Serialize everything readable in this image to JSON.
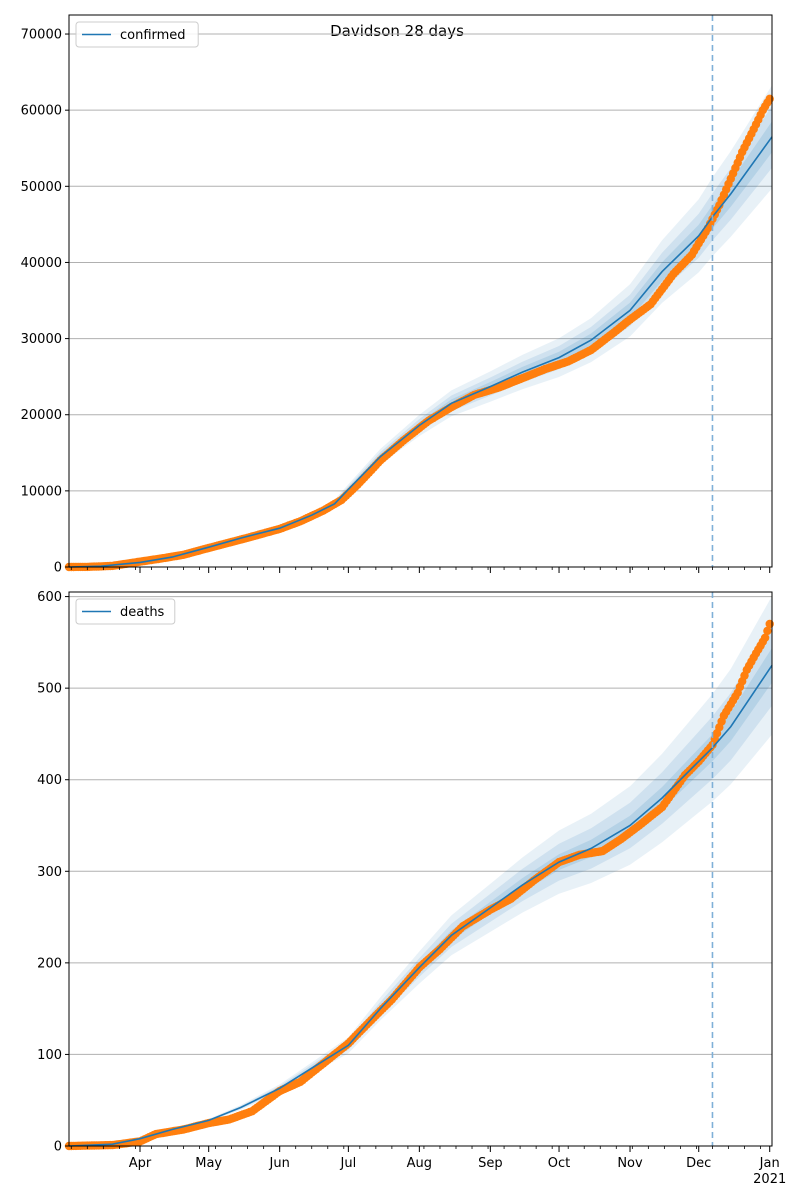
{
  "figure_title": "Davidson 28 days",
  "colors": {
    "model_line": "#1f77b4",
    "observed": "#ff7f0e",
    "band": "#1f77b4",
    "grid": "#b0b0b0",
    "vline": "#7fb0d8"
  },
  "chart_data": [
    {
      "type": "line",
      "legend": "confirmed",
      "legend_position": "top-left",
      "grid": "y",
      "x_range": [
        "2020-03-01",
        "2021-01-02"
      ],
      "vline_date": "2020-12-07",
      "ylim": [
        0,
        72500
      ],
      "yticks": [
        0,
        10000,
        20000,
        30000,
        40000,
        50000,
        60000,
        70000
      ],
      "ytick_labels": [
        "0",
        "10000",
        "20000",
        "30000",
        "40000",
        "50000",
        "60000",
        "70000"
      ],
      "show_x_labels": false,
      "model_series": {
        "name": "confirmed",
        "points": [
          [
            "2020-03-01",
            0
          ],
          [
            "2020-03-15",
            100
          ],
          [
            "2020-04-01",
            600
          ],
          [
            "2020-04-15",
            1300
          ],
          [
            "2020-05-01",
            2600
          ],
          [
            "2020-05-15",
            3800
          ],
          [
            "2020-06-01",
            5100
          ],
          [
            "2020-06-15",
            6800
          ],
          [
            "2020-06-25",
            8300
          ],
          [
            "2020-07-01",
            10200
          ],
          [
            "2020-07-15",
            14500
          ],
          [
            "2020-08-01",
            18600
          ],
          [
            "2020-08-15",
            21500
          ],
          [
            "2020-09-01",
            23700
          ],
          [
            "2020-09-15",
            25600
          ],
          [
            "2020-10-01",
            27500
          ],
          [
            "2020-10-15",
            29800
          ],
          [
            "2020-11-01",
            33700
          ],
          [
            "2020-11-15",
            38800
          ],
          [
            "2020-12-01",
            43500
          ],
          [
            "2020-12-07",
            46000
          ],
          [
            "2020-12-15",
            49000
          ],
          [
            "2021-01-02",
            56500
          ]
        ],
        "bands": [
          {
            "lower_frac": 0.1,
            "upper_frac": 0.1,
            "opacity": 0.1
          },
          {
            "lower_frac": 0.06,
            "upper_frac": 0.06,
            "opacity": 0.12
          },
          {
            "lower_frac": 0.03,
            "upper_frac": 0.03,
            "opacity": 0.14
          }
        ]
      },
      "observed_series": {
        "name": "observed",
        "points": [
          [
            "2020-03-01",
            0
          ],
          [
            "2020-03-10",
            20
          ],
          [
            "2020-03-20",
            150
          ],
          [
            "2020-04-01",
            700
          ],
          [
            "2020-04-10",
            1100
          ],
          [
            "2020-04-20",
            1600
          ],
          [
            "2020-05-01",
            2500
          ],
          [
            "2020-05-10",
            3200
          ],
          [
            "2020-05-20",
            4000
          ],
          [
            "2020-06-01",
            5000
          ],
          [
            "2020-06-10",
            6000
          ],
          [
            "2020-06-20",
            7400
          ],
          [
            "2020-06-28",
            8800
          ],
          [
            "2020-07-05",
            10800
          ],
          [
            "2020-07-15",
            14000
          ],
          [
            "2020-07-25",
            16600
          ],
          [
            "2020-08-05",
            19200
          ],
          [
            "2020-08-15",
            21000
          ],
          [
            "2020-08-25",
            22600
          ],
          [
            "2020-09-05",
            23600
          ],
          [
            "2020-09-15",
            24800
          ],
          [
            "2020-09-25",
            26000
          ],
          [
            "2020-10-05",
            27000
          ],
          [
            "2020-10-15",
            28500
          ],
          [
            "2020-10-25",
            30800
          ],
          [
            "2020-11-01",
            32500
          ],
          [
            "2020-11-10",
            34500
          ],
          [
            "2020-11-20",
            38500
          ],
          [
            "2020-11-28",
            41000
          ],
          [
            "2020-12-05",
            44500
          ],
          [
            "2020-12-10",
            47500
          ],
          [
            "2020-12-15",
            51000
          ],
          [
            "2020-12-20",
            54500
          ],
          [
            "2020-12-25",
            57500
          ],
          [
            "2020-12-29",
            60000
          ],
          [
            "2021-01-01",
            61500
          ]
        ]
      }
    },
    {
      "type": "line",
      "legend": "deaths",
      "legend_position": "top-left",
      "grid": "y",
      "x_range": [
        "2020-03-01",
        "2021-01-02"
      ],
      "vline_date": "2020-12-07",
      "ylim": [
        0,
        605
      ],
      "yticks": [
        0,
        100,
        200,
        300,
        400,
        500,
        600
      ],
      "ytick_labels": [
        "0",
        "100",
        "200",
        "300",
        "400",
        "500",
        "600"
      ],
      "show_x_labels": true,
      "xtick_labels": [
        {
          "date": "2020-04-01",
          "label": "Apr"
        },
        {
          "date": "2020-05-01",
          "label": "May"
        },
        {
          "date": "2020-06-01",
          "label": "Jun"
        },
        {
          "date": "2020-07-01",
          "label": "Jul"
        },
        {
          "date": "2020-08-01",
          "label": "Aug"
        },
        {
          "date": "2020-09-01",
          "label": "Sep"
        },
        {
          "date": "2020-10-01",
          "label": "Oct"
        },
        {
          "date": "2020-11-01",
          "label": "Nov"
        },
        {
          "date": "2020-12-01",
          "label": "Dec"
        },
        {
          "date": "2021-01-01",
          "label": "Jan"
        }
      ],
      "year_label": {
        "date": "2021-01-01",
        "label": "2021"
      },
      "model_series": {
        "name": "deaths",
        "points": [
          [
            "2020-03-01",
            0
          ],
          [
            "2020-03-20",
            2
          ],
          [
            "2020-04-01",
            8
          ],
          [
            "2020-04-15",
            18
          ],
          [
            "2020-05-01",
            28
          ],
          [
            "2020-05-15",
            42
          ],
          [
            "2020-06-01",
            63
          ],
          [
            "2020-06-15",
            85
          ],
          [
            "2020-07-01",
            110
          ],
          [
            "2020-07-15",
            150
          ],
          [
            "2020-08-01",
            195
          ],
          [
            "2020-08-15",
            230
          ],
          [
            "2020-09-01",
            260
          ],
          [
            "2020-09-15",
            285
          ],
          [
            "2020-10-01",
            310
          ],
          [
            "2020-10-15",
            325
          ],
          [
            "2020-11-01",
            350
          ],
          [
            "2020-11-15",
            380
          ],
          [
            "2020-12-01",
            420
          ],
          [
            "2020-12-07",
            435
          ],
          [
            "2020-12-15",
            458
          ],
          [
            "2021-01-02",
            525
          ]
        ],
        "bands": [
          {
            "lower_frac": 0.12,
            "upper_frac": 0.12,
            "opacity": 0.1
          },
          {
            "lower_frac": 0.07,
            "upper_frac": 0.07,
            "opacity": 0.12
          },
          {
            "lower_frac": 0.03,
            "upper_frac": 0.03,
            "opacity": 0.14
          }
        ]
      },
      "observed_series": {
        "name": "observed",
        "points": [
          [
            "2020-03-01",
            0
          ],
          [
            "2020-03-20",
            1
          ],
          [
            "2020-04-01",
            5
          ],
          [
            "2020-04-08",
            13
          ],
          [
            "2020-04-20",
            18
          ],
          [
            "2020-05-01",
            25
          ],
          [
            "2020-05-10",
            29
          ],
          [
            "2020-05-20",
            38
          ],
          [
            "2020-06-01",
            60
          ],
          [
            "2020-06-10",
            70
          ],
          [
            "2020-06-20",
            90
          ],
          [
            "2020-07-01",
            112
          ],
          [
            "2020-07-10",
            135
          ],
          [
            "2020-07-20",
            160
          ],
          [
            "2020-08-01",
            195
          ],
          [
            "2020-08-10",
            215
          ],
          [
            "2020-08-20",
            240
          ],
          [
            "2020-09-01",
            258
          ],
          [
            "2020-09-10",
            270
          ],
          [
            "2020-09-20",
            290
          ],
          [
            "2020-10-01",
            310
          ],
          [
            "2020-10-10",
            318
          ],
          [
            "2020-10-20",
            322
          ],
          [
            "2020-10-28",
            335
          ],
          [
            "2020-11-05",
            350
          ],
          [
            "2020-11-15",
            370
          ],
          [
            "2020-11-25",
            405
          ],
          [
            "2020-12-01",
            420
          ],
          [
            "2020-12-07",
            438
          ],
          [
            "2020-12-12",
            470
          ],
          [
            "2020-12-18",
            495
          ],
          [
            "2020-12-22",
            520
          ],
          [
            "2020-12-26",
            538
          ],
          [
            "2020-12-30",
            555
          ],
          [
            "2021-01-01",
            570
          ]
        ]
      }
    }
  ]
}
